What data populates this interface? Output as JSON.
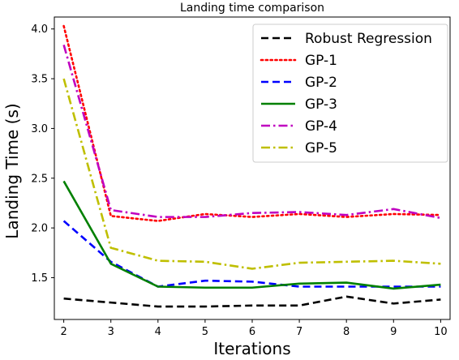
{
  "chart_data": {
    "type": "line",
    "title": "Landing time comparison",
    "xlabel": "Iterations",
    "ylabel": "Landing Time (s)",
    "x": [
      2,
      3,
      4,
      5,
      6,
      7,
      8,
      9,
      10
    ],
    "xlim": [
      1.8,
      10.2
    ],
    "ylim": [
      1.08,
      4.12
    ],
    "xticks": [
      2,
      3,
      4,
      5,
      6,
      7,
      8,
      9,
      10
    ],
    "yticks": [
      1.5,
      2.0,
      2.5,
      3.0,
      3.5,
      4.0
    ],
    "ytick_labels": [
      "1.5",
      "2.0",
      "2.5",
      "3.0",
      "3.5",
      "4.0"
    ],
    "grid": false,
    "legend_position": "top-right",
    "series": [
      {
        "name": "Robust Regression",
        "values": [
          1.29,
          1.25,
          1.21,
          1.21,
          1.22,
          1.22,
          1.31,
          1.24,
          1.28
        ],
        "color": "#000000",
        "dash": "dashed"
      },
      {
        "name": "GP-1",
        "values": [
          4.03,
          2.12,
          2.07,
          2.14,
          2.11,
          2.14,
          2.11,
          2.14,
          2.13
        ],
        "color": "#ff0000",
        "dash": "dotted"
      },
      {
        "name": "GP-2",
        "values": [
          2.07,
          1.66,
          1.41,
          1.47,
          1.46,
          1.41,
          1.41,
          1.41,
          1.41
        ],
        "color": "#0000ff",
        "dash": "dashed"
      },
      {
        "name": "GP-3",
        "values": [
          2.47,
          1.64,
          1.41,
          1.4,
          1.4,
          1.44,
          1.45,
          1.39,
          1.43
        ],
        "color": "#008000",
        "dash": "solid"
      },
      {
        "name": "GP-4",
        "values": [
          3.84,
          2.18,
          2.11,
          2.11,
          2.15,
          2.16,
          2.13,
          2.19,
          2.1
        ],
        "color": "#c000c0",
        "dash": "dashdot"
      },
      {
        "name": "GP-5",
        "values": [
          3.5,
          1.8,
          1.67,
          1.66,
          1.59,
          1.65,
          1.66,
          1.67,
          1.64
        ],
        "color": "#bfbf00",
        "dash": "dashdot"
      }
    ]
  }
}
